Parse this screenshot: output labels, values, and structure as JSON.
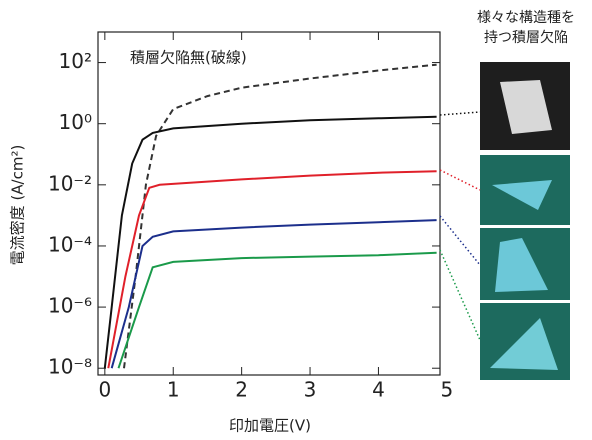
{
  "chart_data": {
    "type": "line",
    "log_y": true,
    "xlabel": "印加電圧(V)",
    "ylabel": "電流密度 (A/cm²)",
    "annotation": "積層欠陥無(破線)",
    "side_title": [
      "様々な構造種を",
      "持つ積層欠陥"
    ],
    "xlim": [
      -0.1,
      4.9
    ],
    "xticks": [
      0,
      1,
      2,
      3,
      4,
      5
    ],
    "ylim": [
      6e-09,
      1000
    ],
    "yticks": [
      {
        "value": 100,
        "label": "10²"
      },
      {
        "value": 1,
        "label": "10⁰"
      },
      {
        "value": 0.01,
        "label": "10⁻²"
      },
      {
        "value": 0.0001,
        "label": "10⁻⁴"
      },
      {
        "value": 1e-06,
        "label": "10⁻⁶"
      },
      {
        "value": 1e-08,
        "label": "10⁻⁸"
      }
    ],
    "series": [
      {
        "color": "#333333",
        "dashed": true,
        "x": [
          0.28,
          0.45,
          0.6,
          0.75,
          1,
          1.5,
          2,
          3,
          4,
          4.85
        ],
        "values": [
          1e-08,
          1e-05,
          0.01,
          0.4,
          3,
          8,
          15,
          30,
          55,
          85
        ]
      },
      {
        "color": "#111111",
        "dashed": false,
        "x": [
          0,
          0.1,
          0.25,
          0.4,
          0.55,
          0.7,
          1,
          2,
          3,
          4,
          4.85
        ],
        "values": [
          1e-08,
          1e-06,
          0.001,
          0.05,
          0.3,
          0.5,
          0.7,
          1,
          1.3,
          1.5,
          1.7
        ]
      },
      {
        "color": "#e0202a",
        "dashed": false,
        "x": [
          0.05,
          0.3,
          0.5,
          0.65,
          0.8,
          2,
          3,
          4,
          4.85
        ],
        "values": [
          1e-08,
          1e-05,
          0.001,
          0.008,
          0.01,
          0.015,
          0.02,
          0.025,
          0.028
        ]
      },
      {
        "color": "#1c2f8c",
        "dashed": false,
        "x": [
          0.1,
          0.35,
          0.55,
          0.7,
          1,
          2,
          3,
          4,
          4.85
        ],
        "values": [
          1e-08,
          1e-06,
          0.0001,
          0.0002,
          0.0003,
          0.0004,
          0.0005,
          0.0006,
          0.0007
        ]
      },
      {
        "color": "#1a9a4a",
        "dashed": false,
        "x": [
          0.2,
          0.5,
          0.7,
          1,
          2,
          3,
          4,
          4.85
        ],
        "values": [
          1e-08,
          1e-06,
          2e-05,
          3e-05,
          4e-05,
          4.5e-05,
          5e-05,
          6e-05
        ]
      }
    ]
  }
}
